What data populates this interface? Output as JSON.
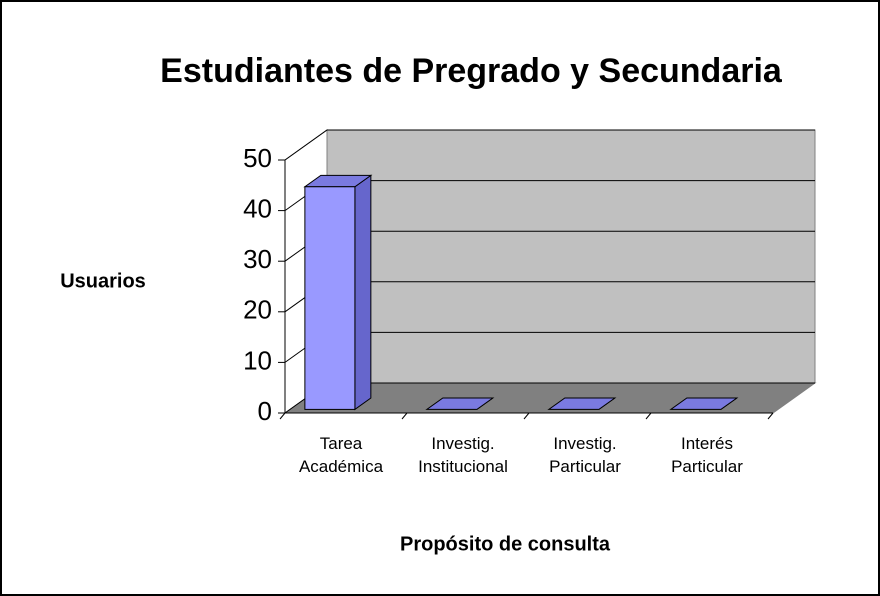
{
  "chart_data": {
    "type": "bar3d",
    "title": "Estudiantes de Pregrado y Secundaria",
    "y_label": "Usuarios",
    "x_label": "Propósito de consulta",
    "categories": [
      "Tarea Académica",
      "Investig. Institucional",
      "Investig. Particular",
      "Interés Particular"
    ],
    "values": [
      44,
      0,
      0,
      0
    ],
    "color": "#9999ff",
    "ylim": [
      0,
      50
    ],
    "yticks": [
      0,
      10,
      20,
      30,
      40,
      50
    ],
    "grid": true
  }
}
